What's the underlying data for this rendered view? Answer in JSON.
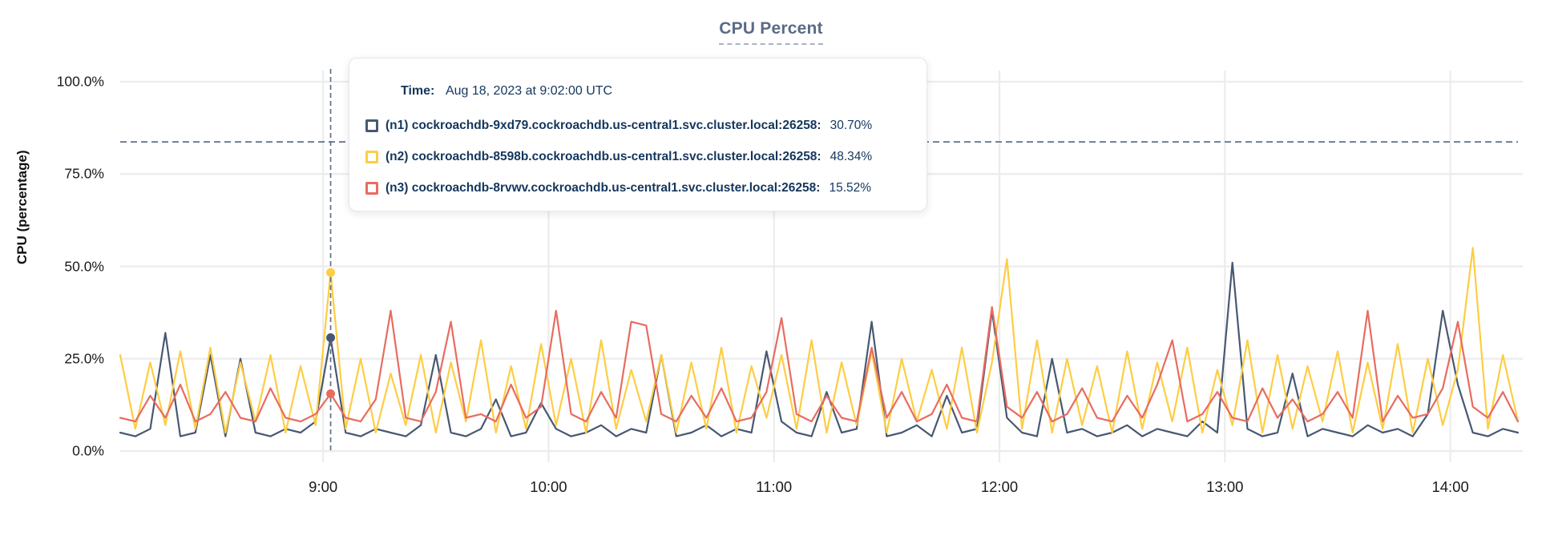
{
  "colors": {
    "title": "#5a6b87",
    "tooltip_text": "#14365d",
    "gridline": "#ececec",
    "rule_dashed": "#5e7186",
    "n1": "#475872",
    "n2": "#fecd43",
    "n3": "#e86c60"
  },
  "tooltip": {
    "time_label": "Time:",
    "time_value": "Aug 18, 2023 at 9:02:00 UTC",
    "rows": [
      {
        "label": "(n1) cockroachdb-9xd79.cockroachdb.us-central1.svc.cluster.local:26258:",
        "value": "30.70%",
        "color": "#475872"
      },
      {
        "label": "(n2) cockroachdb-8598b.cockroachdb.us-central1.svc.cluster.local:26258:",
        "value": "48.34%",
        "color": "#fecd43"
      },
      {
        "label": "(n3) cockroachdb-8rvwv.cockroachdb.us-central1.svc.cluster.local:26258:",
        "value": "15.52%",
        "color": "#e86c60"
      }
    ]
  },
  "chart_data": {
    "type": "line",
    "title": "CPU Percent",
    "xlabel": "",
    "ylabel": "CPU (percentage)",
    "ylim": [
      0,
      100
    ],
    "grid": true,
    "legend_position": "tooltip-overlay",
    "x_start_minutes": 486,
    "x_step_minutes": 4,
    "x_end_minutes": 858,
    "y_ticks": [
      {
        "v": 0,
        "label": "0.0%"
      },
      {
        "v": 25,
        "label": "25.0%"
      },
      {
        "v": 50,
        "label": "50.0%"
      },
      {
        "v": 75,
        "label": "75.0%"
      },
      {
        "v": 100,
        "label": "100.0%"
      }
    ],
    "x_ticks": [
      {
        "minutes": 540,
        "label": "9:00"
      },
      {
        "minutes": 600,
        "label": "10:00"
      },
      {
        "minutes": 660,
        "label": "11:00"
      },
      {
        "minutes": 720,
        "label": "12:00"
      },
      {
        "minutes": 780,
        "label": "13:00"
      },
      {
        "minutes": 840,
        "label": "14:00"
      }
    ],
    "threshold": {
      "value": 83.7,
      "style": "dashed"
    },
    "hover": {
      "time_minutes": 542,
      "time_label": "9:02",
      "points": [
        {
          "series": "n1",
          "value": 30.7
        },
        {
          "series": "n2",
          "value": 48.34
        },
        {
          "series": "n3",
          "value": 15.52
        }
      ]
    },
    "series": [
      {
        "id": "n1",
        "name": "(n1) cockroachdb-9xd79.cockroachdb.us-central1.svc.cluster.local:26258",
        "color": "#475872",
        "values": [
          5,
          4,
          6,
          32,
          4,
          5,
          26,
          4,
          25,
          5,
          4,
          6,
          5,
          8,
          30.7,
          5,
          4,
          6,
          5,
          4,
          7,
          26,
          5,
          4,
          6,
          14,
          4,
          5,
          13,
          6,
          4,
          5,
          7,
          4,
          6,
          5,
          26,
          4,
          5,
          7,
          4,
          6,
          5,
          27,
          8,
          5,
          4,
          16,
          5,
          6,
          35,
          4,
          5,
          7,
          4,
          15,
          5,
          6,
          38,
          9,
          5,
          4,
          25,
          5,
          6,
          4,
          5,
          7,
          4,
          6,
          5,
          4,
          8,
          5,
          51,
          6,
          4,
          5,
          21,
          4,
          6,
          5,
          4,
          7,
          5,
          6,
          4,
          10,
          38,
          18,
          5,
          4,
          6,
          5
        ]
      },
      {
        "id": "n2",
        "name": "(n2) cockroachdb-8598b.cockroachdb.us-central1.svc.cluster.local:26258",
        "color": "#fecd43",
        "values": [
          26,
          6,
          24,
          7,
          27,
          6,
          28,
          5,
          24,
          8,
          26,
          5,
          23,
          7,
          48.3,
          6,
          25,
          5,
          21,
          7,
          26,
          5,
          24,
          8,
          30,
          5,
          23,
          6,
          29,
          7,
          25,
          5,
          30,
          6,
          22,
          8,
          26,
          5,
          24,
          6,
          28,
          5,
          23,
          9,
          26,
          6,
          30,
          5,
          24,
          7,
          27,
          5,
          25,
          8,
          22,
          6,
          28,
          5,
          24,
          52,
          6,
          30,
          5,
          25,
          7,
          23,
          5,
          27,
          6,
          24,
          8,
          28,
          5,
          22,
          7,
          30,
          5,
          26,
          6,
          23,
          8,
          27,
          5,
          24,
          6,
          29,
          5,
          25,
          7,
          22,
          55,
          6,
          26,
          8
        ]
      },
      {
        "id": "n3",
        "name": "(n3) cockroachdb-8rvwv.cockroachdb.us-central1.svc.cluster.local:26258",
        "color": "#e86c60",
        "values": [
          9,
          8,
          15,
          9,
          18,
          8,
          10,
          16,
          9,
          8,
          17,
          9,
          8,
          10,
          15.5,
          9,
          8,
          14,
          38,
          9,
          8,
          16,
          35,
          9,
          10,
          8,
          18,
          9,
          12,
          38,
          10,
          8,
          16,
          9,
          35,
          34,
          10,
          8,
          15,
          9,
          17,
          8,
          9,
          16,
          36,
          10,
          8,
          15,
          9,
          8,
          28,
          9,
          16,
          8,
          10,
          18,
          9,
          8,
          39,
          12,
          9,
          16,
          8,
          10,
          17,
          9,
          8,
          15,
          9,
          18,
          30,
          8,
          10,
          16,
          9,
          8,
          17,
          9,
          14,
          8,
          10,
          16,
          9,
          38,
          8,
          15,
          9,
          10,
          17,
          35,
          12,
          9,
          16,
          8
        ]
      }
    ]
  }
}
